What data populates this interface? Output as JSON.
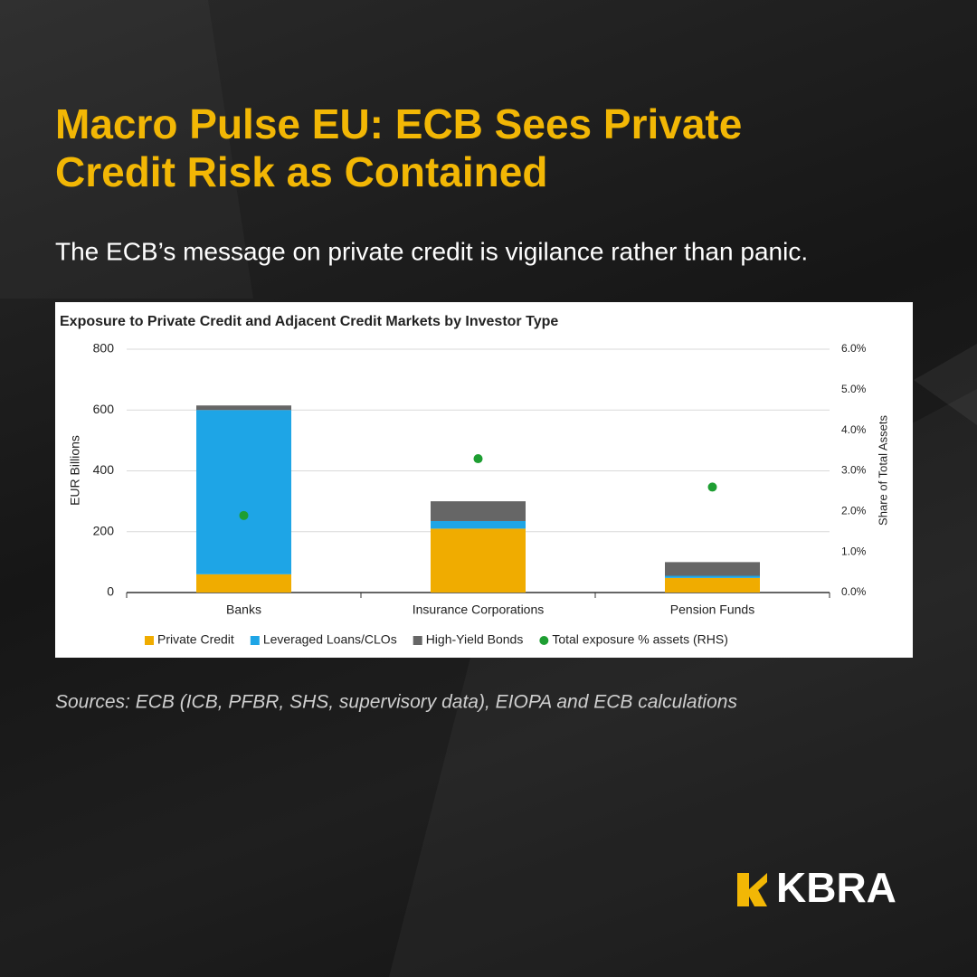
{
  "title": "Macro Pulse EU: ECB Sees Private Credit Risk as Contained",
  "subtitle": "The ECB’s message on private credit is vigilance rather than panic.",
  "chart_data": {
    "type": "bar",
    "stacked": true,
    "title": "Exposure to Private Credit and Adjacent Credit Markets by Investor Type",
    "categories": [
      "Banks",
      "Insurance Corporations",
      "Pension Funds"
    ],
    "series": [
      {
        "name": "Private Credit",
        "color": "#f0ac00",
        "values": [
          60,
          210,
          48
        ]
      },
      {
        "name": "Leveraged Loans/CLOs",
        "color": "#1ea5e6",
        "values": [
          540,
          25,
          7
        ]
      },
      {
        "name": "High-Yield Bonds",
        "color": "#666666",
        "values": [
          15,
          65,
          45
        ]
      },
      {
        "name": "Total exposure % assets (RHS)",
        "color": "#1e9e32",
        "type": "scatter",
        "axis": "y2",
        "values": [
          1.9,
          3.3,
          2.6
        ]
      }
    ],
    "ylabel": "EUR Billions",
    "y2label": "Share of Total Assets",
    "ylim": [
      0,
      800
    ],
    "yticks": [
      0,
      200,
      400,
      600,
      800
    ],
    "y2lim": [
      0,
      6
    ],
    "y2ticks": [
      {
        "value": 0,
        "label": "0.0%"
      },
      {
        "value": 1,
        "label": "1.0%"
      },
      {
        "value": 2,
        "label": "2.0%"
      },
      {
        "value": 3,
        "label": "3.0%"
      },
      {
        "value": 4,
        "label": "4.0%"
      },
      {
        "value": 5,
        "label": "5.0%"
      },
      {
        "value": 6,
        "label": "6.0%"
      }
    ],
    "grid": true,
    "legend": "bottom"
  },
  "source": "Sources: ECB (ICB, PFBR, SHS, supervisory data), EIOPA and ECB calculations",
  "brand": "KBRA"
}
